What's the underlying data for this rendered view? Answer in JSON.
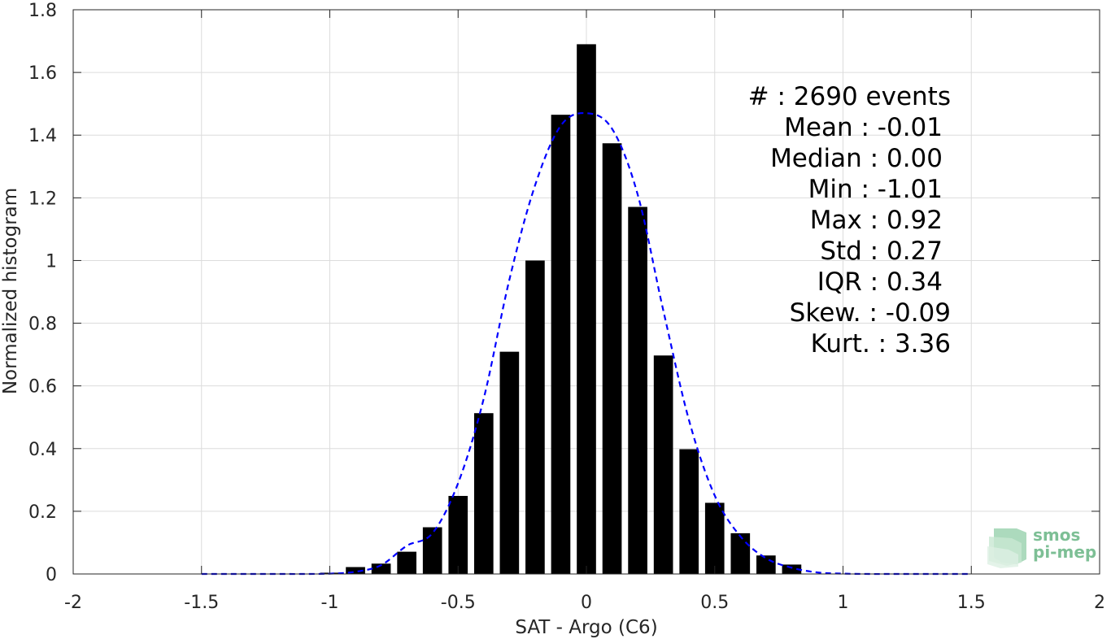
{
  "chart_data": {
    "type": "bar",
    "xlabel": "SAT - Argo (C6)",
    "ylabel": "Normalized histogram",
    "xlim": [
      -2,
      2
    ],
    "ylim": [
      0,
      1.8
    ],
    "grid": true,
    "x_ticks": [
      "-2",
      "-1.5",
      "-1",
      "-0.5",
      "0",
      "0.5",
      "1",
      "1.5",
      "2"
    ],
    "y_ticks": [
      "0",
      "0.2",
      "0.4",
      "0.6",
      "0.8",
      "1",
      "1.2",
      "1.4",
      "1.6",
      "1.8"
    ],
    "bar_color": "#000000",
    "bars": {
      "x": [
        -1.0,
        -0.9,
        -0.8,
        -0.7,
        -0.6,
        -0.5,
        -0.4,
        -0.3,
        -0.2,
        -0.1,
        0.0,
        0.1,
        0.2,
        0.3,
        0.4,
        0.5,
        0.6,
        0.7,
        0.8
      ],
      "values": [
        0.004,
        0.022,
        0.033,
        0.071,
        0.149,
        0.249,
        0.513,
        0.709,
        1.0,
        1.465,
        1.69,
        1.374,
        1.171,
        0.697,
        0.398,
        0.227,
        0.13,
        0.059,
        0.03
      ]
    },
    "fit": {
      "color": "#0000ff",
      "style": "dashed",
      "x": [
        -1.5,
        -1.4,
        -1.3,
        -1.2,
        -1.1,
        -1.0,
        -0.9,
        -0.8,
        -0.7,
        -0.6,
        -0.5,
        -0.4,
        -0.3,
        -0.2,
        -0.1,
        0.0,
        0.1,
        0.2,
        0.3,
        0.4,
        0.5,
        0.6,
        0.7,
        0.8,
        0.9,
        1.0,
        1.1,
        1.2,
        1.3,
        1.4,
        1.5
      ],
      "values": [
        0.0,
        0.0,
        0.0,
        0.0,
        0.0,
        0.001,
        0.007,
        0.028,
        0.09,
        0.13,
        0.29,
        0.56,
        0.94,
        1.24,
        1.43,
        1.47,
        1.42,
        1.21,
        0.84,
        0.49,
        0.25,
        0.12,
        0.05,
        0.02,
        0.005,
        0.001,
        0.0,
        0.0,
        0.0,
        0.0,
        0.0
      ]
    },
    "annotations": [
      "#  : 2690 events",
      "Mean : -0.01",
      "Median : 0.00",
      "Min : -1.01",
      "Max : 0.92",
      "Std : 0.27",
      "IQR : 0.34",
      "Skew. : -0.09",
      "Kurt. : 3.36"
    ]
  },
  "logo": {
    "line1": "smos",
    "line2": "pi-mep",
    "color": "#7dbf95"
  }
}
